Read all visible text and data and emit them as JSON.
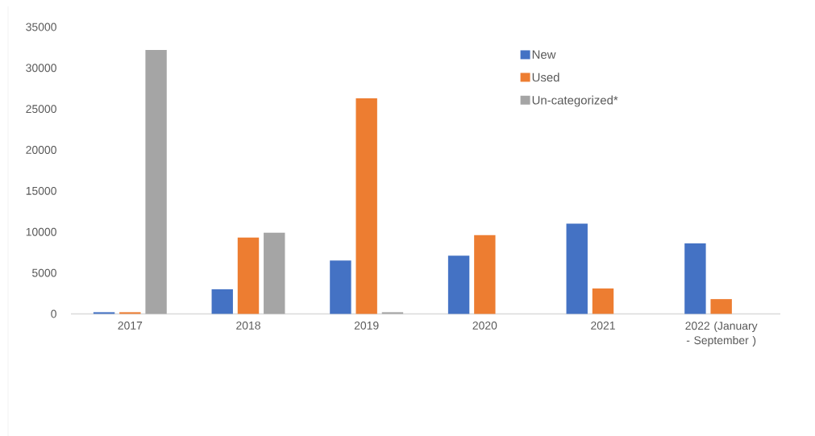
{
  "chart_data": {
    "type": "bar",
    "categories": [
      "2017",
      "2018",
      "2019",
      "2020",
      "2021",
      "2022 (January - September )"
    ],
    "series": [
      {
        "name": "New",
        "color": "#4472c4",
        "values": [
          200,
          3000,
          6500,
          7100,
          11000,
          8600
        ]
      },
      {
        "name": "Used",
        "color": "#ed7d31",
        "values": [
          200,
          9300,
          26300,
          9600,
          3100,
          1800
        ]
      },
      {
        "name": "Un-categorized*",
        "color": "#a5a5a5",
        "values": [
          32200,
          9900,
          200,
          null,
          null,
          null
        ]
      }
    ],
    "ylim": [
      0,
      35000
    ],
    "yticks": [
      0,
      5000,
      10000,
      15000,
      20000,
      25000,
      30000,
      35000
    ],
    "legend": "top right"
  }
}
